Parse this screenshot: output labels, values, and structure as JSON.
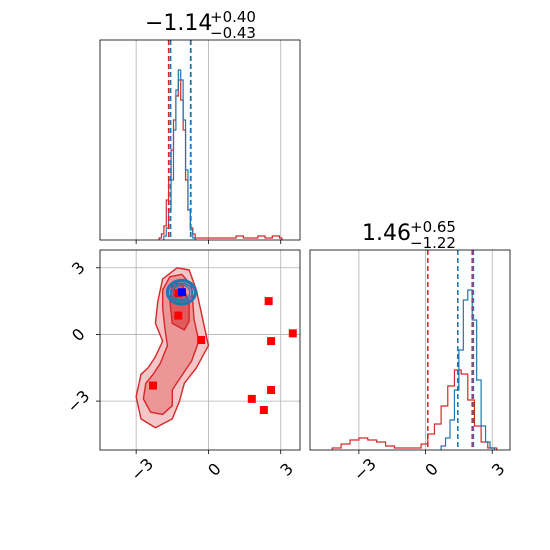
{
  "chart_data": {
    "type": "corner",
    "series": [
      {
        "name": "",
        "color": "#1f77b4"
      },
      {
        "name": "",
        "color": "#d62728"
      }
    ],
    "title_x": {
      "median": "−1.14",
      "plus": "+0.40",
      "minus": "−0.43"
    },
    "title_y": {
      "median": "1.46",
      "plus": "+0.65",
      "minus": "−1.22"
    },
    "x_axis": {
      "range": [
        -4.5,
        3.8
      ],
      "ticks": [
        -3,
        0,
        3
      ],
      "tick_labels": [
        "−3",
        "0",
        "3"
      ]
    },
    "y_axis": {
      "range": [
        -5.2,
        3.8
      ],
      "ticks": [
        -3,
        0,
        3
      ],
      "tick_labels": [
        "−3",
        "0",
        "3"
      ]
    },
    "grid": true,
    "hist_x": {
      "blue": {
        "bins": [
          -1.8,
          -1.7,
          -1.6,
          -1.5,
          -1.4,
          -1.3,
          -1.2,
          -1.1,
          -1.0,
          -0.9,
          -0.8,
          -0.7,
          -0.6
        ],
        "counts": [
          0.02,
          0.06,
          0.15,
          0.3,
          0.55,
          0.75,
          0.85,
          0.8,
          0.6,
          0.35,
          0.15,
          0.05,
          0.01
        ],
        "quantiles": [
          -1.57,
          -0.74
        ]
      },
      "red": {
        "bins": [
          -2.0,
          -1.9,
          -1.8,
          -1.7,
          -1.6,
          -1.5,
          -1.4,
          -1.3,
          -1.2,
          -1.1,
          -1.0,
          -0.9,
          -0.8,
          -0.7,
          -0.6,
          -0.5,
          1.2,
          1.5,
          1.8,
          2.1,
          2.4,
          2.7,
          3.0
        ],
        "counts": [
          0.01,
          0.03,
          0.07,
          0.2,
          0.3,
          0.45,
          0.6,
          0.72,
          0.8,
          0.7,
          0.55,
          0.3,
          0.15,
          0.06,
          0.03,
          0.01,
          0.02,
          0.01,
          0.01,
          0.02,
          0.01,
          0.02,
          0.01
        ],
        "quantiles": [
          -1.65,
          -0.73
        ]
      }
    },
    "hist_y": {
      "blue": {
        "bins": [
          0.8,
          1.0,
          1.2,
          1.4,
          1.6,
          1.8,
          2.0,
          2.2,
          2.4,
          2.6,
          2.8,
          3.0
        ],
        "counts": [
          0.02,
          0.06,
          0.15,
          0.3,
          0.5,
          0.75,
          0.8,
          0.65,
          0.35,
          0.12,
          0.04,
          0.01
        ],
        "quantiles": [
          1.45,
          2.15
        ]
      },
      "red": {
        "bins": [
          -4.0,
          -3.6,
          -3.2,
          -2.8,
          -2.4,
          -2.0,
          -1.6,
          -1.2,
          -0.8,
          -0.4,
          0.0,
          0.3,
          0.6,
          0.9,
          1.2,
          1.5,
          1.8,
          2.1,
          2.4,
          2.7,
          3.0
        ],
        "counts": [
          0.01,
          0.03,
          0.05,
          0.06,
          0.05,
          0.04,
          0.02,
          0.01,
          0.01,
          0.01,
          0.03,
          0.08,
          0.13,
          0.22,
          0.32,
          0.4,
          0.38,
          0.25,
          0.12,
          0.04,
          0.01
        ],
        "quantiles": [
          0.1,
          2.1
        ]
      }
    },
    "scatter_2d": {
      "blue_contours": {
        "center": [
          -1.12,
          1.9
        ],
        "radii": [
          [
            0.6,
            0.55
          ],
          [
            0.55,
            0.5
          ],
          [
            0.45,
            0.4
          ],
          [
            0.35,
            0.32
          ]
        ]
      },
      "blue_marker": [
        -1.1,
        1.9
      ],
      "red_contours": {
        "outer": [
          [
            -2.5,
            -1.5
          ],
          [
            -2.8,
            -1.8
          ],
          [
            -3.0,
            -2.8
          ],
          [
            -2.8,
            -3.8
          ],
          [
            -2.2,
            -4.2
          ],
          [
            -1.5,
            -3.8
          ],
          [
            -1.2,
            -3.0
          ],
          [
            -1.0,
            -2.2
          ],
          [
            -0.5,
            -1.5
          ],
          [
            0.0,
            -0.5
          ],
          [
            -0.2,
            0.5
          ],
          [
            -0.5,
            2.0
          ],
          [
            -0.8,
            2.9
          ],
          [
            -1.3,
            3.0
          ],
          [
            -1.9,
            2.5
          ],
          [
            -2.1,
            1.5
          ],
          [
            -2.2,
            0.5
          ],
          [
            -1.9,
            -0.3
          ],
          [
            -2.2,
            -1.0
          ]
        ],
        "middle": [
          [
            -2.3,
            -1.8
          ],
          [
            -2.6,
            -2.2
          ],
          [
            -2.7,
            -2.9
          ],
          [
            -2.4,
            -3.5
          ],
          [
            -1.9,
            -3.6
          ],
          [
            -1.5,
            -3.2
          ],
          [
            -1.5,
            -2.5
          ],
          [
            -1.2,
            -2.0
          ],
          [
            -0.7,
            -1.2
          ],
          [
            -0.4,
            -0.3
          ],
          [
            -0.6,
            0.7
          ],
          [
            -0.7,
            2.2
          ],
          [
            -1.1,
            2.7
          ],
          [
            -1.6,
            2.6
          ],
          [
            -1.9,
            2.0
          ],
          [
            -1.9,
            1.2
          ],
          [
            -1.8,
            0.2
          ],
          [
            -1.7,
            -0.5
          ],
          [
            -2.0,
            -1.3
          ]
        ],
        "inner": [
          [
            -1.5,
            0.5
          ],
          [
            -1.0,
            0.2
          ],
          [
            -0.8,
            0.6
          ],
          [
            -0.8,
            1.4
          ],
          [
            -1.1,
            2.3
          ],
          [
            -1.5,
            2.3
          ],
          [
            -1.6,
            1.5
          ]
        ]
      },
      "red_squares": [
        [
          -1.25,
          1.85
        ],
        [
          -1.25,
          0.85
        ],
        [
          -0.3,
          -0.25
        ],
        [
          -2.3,
          -2.3
        ],
        [
          2.5,
          1.5
        ],
        [
          2.6,
          -0.3
        ],
        [
          2.6,
          -2.5
        ],
        [
          3.5,
          0.05
        ],
        [
          2.3,
          -3.4
        ],
        [
          1.8,
          -2.9
        ]
      ]
    }
  }
}
